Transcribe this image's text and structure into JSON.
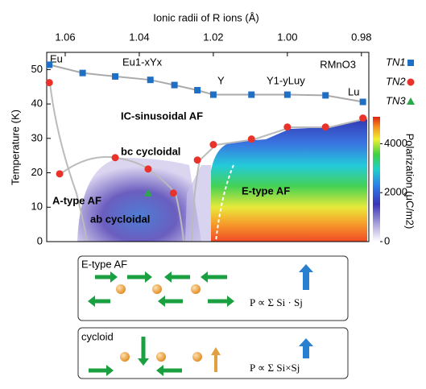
{
  "chart_data": {
    "type": "scatter",
    "title": "RMnO3",
    "x_label": "Ionic radii of R ions (Å)",
    "y_label": "Temperature (K)",
    "xlim": [
      1.065,
      0.978
    ],
    "xticks": [
      1.06,
      1.04,
      1.02,
      {
        "value": 1.0,
        "label": "1.00"
      },
      0.98
    ],
    "ylim": [
      0,
      55
    ],
    "yticks": [
      0,
      10,
      20,
      30,
      40,
      50
    ],
    "series": [
      {
        "name": "TN1",
        "color": "#1f6fc4",
        "marker": "square",
        "line": true,
        "x": [
          1.0643,
          1.0553,
          1.0465,
          1.037,
          1.0305,
          1.0243,
          1.02,
          1.0097,
          1.0,
          0.9897,
          0.9796
        ],
        "values": [
          51.4,
          49,
          48,
          47,
          45.5,
          44,
          42.7,
          42.7,
          42.7,
          42.5,
          40.6
        ]
      },
      {
        "name": "TN2",
        "color": "#e8322a",
        "marker": "circle",
        "line": false,
        "x": [
          1.0643,
          1.0615,
          1.0465,
          1.0376,
          1.0308,
          1.0243,
          1.02,
          1.0097,
          1.0,
          0.9897,
          0.9796
        ],
        "values": [
          46.2,
          19.7,
          24.4,
          21.1,
          14.1,
          23.7,
          28.2,
          29.8,
          33.3,
          33.3,
          35.9
        ]
      },
      {
        "name": "TN3",
        "color": "#2aa84a",
        "marker": "triangle",
        "line": false,
        "x": [
          1.0376
        ],
        "values": [
          14.1
        ]
      }
    ],
    "composition_labels": [
      "Eu",
      "Eu1-xYx",
      "Y",
      "Y1-yLuy",
      "Lu"
    ],
    "phase_labels": [
      "IC-sinusoidal AF",
      "bc cycloidal",
      "A-type AF",
      "ab cycloidal",
      "E-type AF"
    ],
    "colorbar": {
      "label": "Polarization (μC/m2)",
      "lim": [
        0,
        5100
      ],
      "ticks": [
        0,
        2000,
        4000
      ]
    },
    "panels": [
      {
        "title": "E-type AF",
        "formula": "P ∝ Σ Si · Sj"
      },
      {
        "title": "cycloid",
        "formula": "P ∝ Σ Si×Sj"
      }
    ]
  }
}
